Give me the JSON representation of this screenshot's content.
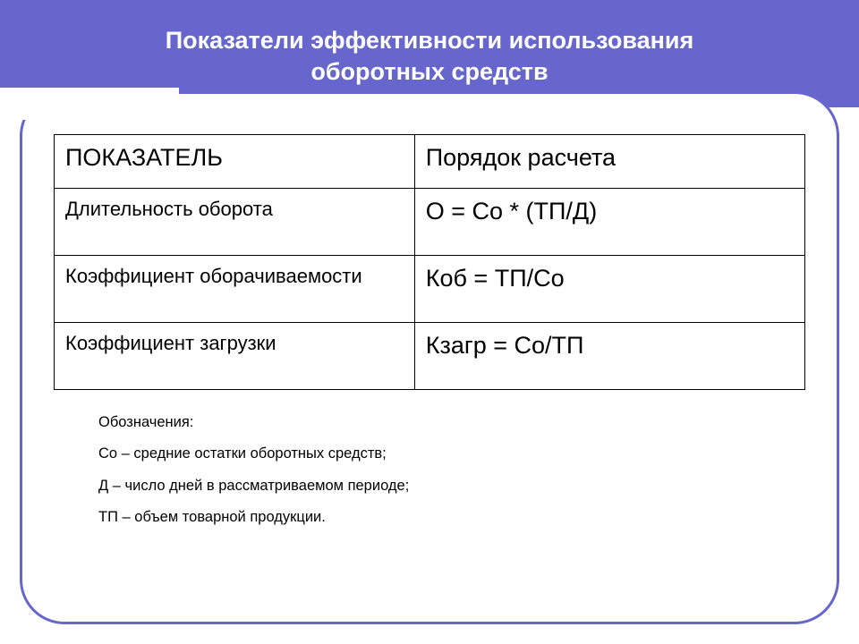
{
  "header": {
    "title_line1": "Показатели эффективности использования",
    "title_line2": "оборотных средств"
  },
  "table": {
    "columns": [
      "ПОКАЗАТЕЛЬ",
      "Порядок расчета"
    ],
    "rows": [
      {
        "indicator": "Длительность оборота",
        "formula": "О = Со * (ТП/Д)"
      },
      {
        "indicator": "Коэффициент оборачиваемости",
        "formula": "Коб = ТП/Со"
      },
      {
        "indicator": "Коэффициент загрузки",
        "formula": "Кзагр = Со/ТП"
      }
    ]
  },
  "legend": {
    "heading": "Обозначения:",
    "items": [
      "Со – средние остатки оборотных средств;",
      "Д – число дней в рассматриваемом периоде;",
      "ТП – объем товарной продукции."
    ]
  },
  "colors": {
    "header_bg": "#6666cc",
    "header_text": "#ffffff",
    "frame_border": "#6666cc",
    "table_border": "#000000",
    "body_bg": "#ffffff",
    "text": "#000000"
  },
  "fonts": {
    "header_size": 27,
    "table_header_size": 27,
    "indicator_size": 22,
    "formula_size": 27,
    "legend_size": 16.5
  }
}
